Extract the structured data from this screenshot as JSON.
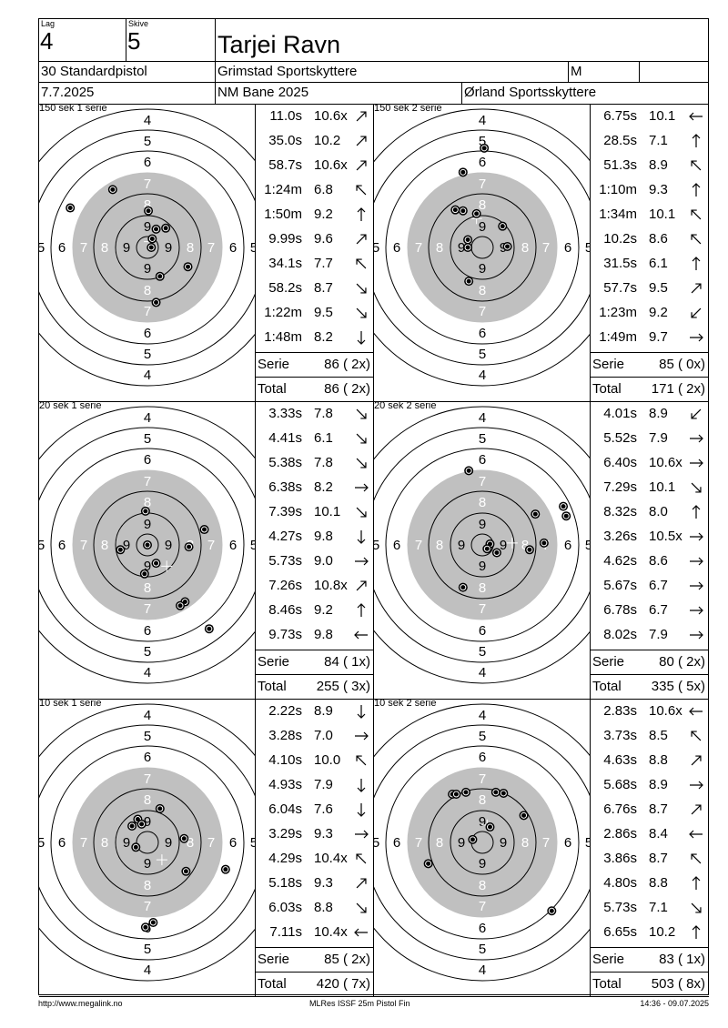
{
  "header": {
    "lag_label": "Lag",
    "lag_value": "4",
    "skive_label": "Skive",
    "skive_value": "5",
    "shooter_name": "Tarjei Ravn",
    "class": "30 Standardpistol",
    "club": "Grimstad Sportskyttere",
    "gender": "M",
    "date": "7.7.2025",
    "event": "NM Bane 2025",
    "organizer": "Ørland Sportsskyttere"
  },
  "target_labels": {
    "ring4": "4",
    "ring5": "5",
    "ring6": "6",
    "ring7": "7",
    "ring8": "8",
    "ring9": "9"
  },
  "summary_labels": {
    "serie": "Serie",
    "total": "Total"
  },
  "series": [
    {
      "title": "150 sek 1 serie",
      "shots": [
        {
          "time": "11.0s",
          "score": "10.6x",
          "dir": "up-right"
        },
        {
          "time": "35.0s",
          "score": "10.2",
          "dir": "up-right"
        },
        {
          "time": "58.7s",
          "score": "10.6x",
          "dir": "up-right"
        },
        {
          "time": "1:24m",
          "score": "6.8",
          "dir": "up-left"
        },
        {
          "time": "1:50m",
          "score": "9.2",
          "dir": "up"
        },
        {
          "time": "9.99s",
          "score": "9.6",
          "dir": "up-right"
        },
        {
          "time": "34.1s",
          "score": "7.7",
          "dir": "up-left"
        },
        {
          "time": "58.2s",
          "score": "8.7",
          "dir": "down-right"
        },
        {
          "time": "1:22m",
          "score": "9.5",
          "dir": "down-right"
        },
        {
          "time": "1:48m",
          "score": "8.2",
          "dir": "down"
        }
      ],
      "serie_value": "86 ( 2x)",
      "total_value": "86 ( 2x)",
      "hits": [
        [
          -0.8,
          0.41
        ],
        [
          -0.36,
          0.6
        ],
        [
          0.01,
          0.38
        ],
        [
          0.09,
          0.19
        ],
        [
          0.19,
          0.2
        ],
        [
          0.05,
          0.09
        ],
        [
          0.04,
          0.0
        ],
        [
          0.42,
          -0.2
        ],
        [
          0.13,
          -0.3
        ],
        [
          0.09,
          -0.57
        ]
      ],
      "center_mark": [
        0.02,
        0.06
      ]
    },
    {
      "title": "150 sek 2 serie",
      "shots": [
        {
          "time": "6.75s",
          "score": "10.1",
          "dir": "left"
        },
        {
          "time": "28.5s",
          "score": "7.1",
          "dir": "up"
        },
        {
          "time": "51.3s",
          "score": "8.9",
          "dir": "up-left"
        },
        {
          "time": "1:10m",
          "score": "9.3",
          "dir": "up"
        },
        {
          "time": "1:34m",
          "score": "10.1",
          "dir": "up-left"
        },
        {
          "time": "10.2s",
          "score": "8.6",
          "dir": "up-left"
        },
        {
          "time": "31.5s",
          "score": "6.1",
          "dir": "up"
        },
        {
          "time": "57.7s",
          "score": "9.5",
          "dir": "up-right"
        },
        {
          "time": "1:23m",
          "score": "9.2",
          "dir": "down-left"
        },
        {
          "time": "1:49m",
          "score": "9.7",
          "dir": "right"
        }
      ],
      "serie_value": "85 ( 0x)",
      "total_value": "171 ( 2x)",
      "hits": [
        [
          0.02,
          1.03
        ],
        [
          -0.2,
          0.78
        ],
        [
          -0.28,
          0.39
        ],
        [
          -0.2,
          0.38
        ],
        [
          -0.06,
          0.35
        ],
        [
          0.21,
          0.22
        ],
        [
          -0.15,
          0.08
        ],
        [
          -0.15,
          0.0
        ],
        [
          0.26,
          0.01
        ],
        [
          -0.14,
          -0.35
        ]
      ],
      "center_mark": [
        -0.06,
        0.3
      ]
    },
    {
      "title": "20 sek 1 serie",
      "shots": [
        {
          "time": "3.33s",
          "score": "7.8",
          "dir": "down-right"
        },
        {
          "time": "4.41s",
          "score": "6.1",
          "dir": "down-right"
        },
        {
          "time": "5.38s",
          "score": "7.8",
          "dir": "down-right"
        },
        {
          "time": "6.38s",
          "score": "8.2",
          "dir": "right"
        },
        {
          "time": "7.39s",
          "score": "10.1",
          "dir": "down-right"
        },
        {
          "time": "4.27s",
          "score": "9.8",
          "dir": "down"
        },
        {
          "time": "5.73s",
          "score": "9.0",
          "dir": "right"
        },
        {
          "time": "7.26s",
          "score": "10.8x",
          "dir": "up-right"
        },
        {
          "time": "8.46s",
          "score": "9.2",
          "dir": "up"
        },
        {
          "time": "9.73s",
          "score": "9.8",
          "dir": "left"
        }
      ],
      "serie_value": "84 ( 1x)",
      "total_value": "255 ( 3x)",
      "hits": [
        [
          -0.02,
          0.35
        ],
        [
          0.59,
          0.16
        ],
        [
          0.43,
          -0.02
        ],
        [
          0.0,
          -0.0
        ],
        [
          -0.28,
          -0.05
        ],
        [
          0.09,
          -0.19
        ],
        [
          -0.03,
          -0.3
        ],
        [
          0.39,
          -0.59
        ],
        [
          0.34,
          -0.63
        ],
        [
          0.64,
          -0.87
        ]
      ],
      "center_mark": [
        0.2,
        -0.22
      ]
    },
    {
      "title": "20 sek 2 serie",
      "shots": [
        {
          "time": "4.01s",
          "score": "8.9",
          "dir": "down-left"
        },
        {
          "time": "5.52s",
          "score": "7.9",
          "dir": "right"
        },
        {
          "time": "6.40s",
          "score": "10.6x",
          "dir": "right"
        },
        {
          "time": "7.29s",
          "score": "10.1",
          "dir": "down-right"
        },
        {
          "time": "8.32s",
          "score": "8.0",
          "dir": "up"
        },
        {
          "time": "3.26s",
          "score": "10.5x",
          "dir": "right"
        },
        {
          "time": "4.62s",
          "score": "8.6",
          "dir": "right"
        },
        {
          "time": "5.67s",
          "score": "6.7",
          "dir": "right"
        },
        {
          "time": "6.78s",
          "score": "6.7",
          "dir": "right"
        },
        {
          "time": "8.02s",
          "score": "7.9",
          "dir": "right"
        }
      ],
      "serie_value": "80 ( 2x)",
      "total_value": "335 ( 5x)",
      "hits": [
        [
          -0.14,
          0.77
        ],
        [
          0.55,
          0.32
        ],
        [
          0.84,
          0.4
        ],
        [
          0.87,
          0.3
        ],
        [
          0.64,
          0.02
        ],
        [
          0.49,
          -0.05
        ],
        [
          0.08,
          0.01
        ],
        [
          0.05,
          -0.04
        ],
        [
          0.15,
          -0.08
        ],
        [
          -0.2,
          -0.44
        ]
      ],
      "center_mark": [
        0.31,
        0.02
      ]
    },
    {
      "title": "10 sek 1 serie",
      "shots": [
        {
          "time": "2.22s",
          "score": "8.9",
          "dir": "down"
        },
        {
          "time": "3.28s",
          "score": "7.0",
          "dir": "right"
        },
        {
          "time": "4.10s",
          "score": "10.0",
          "dir": "up-left"
        },
        {
          "time": "4.93s",
          "score": "7.9",
          "dir": "down"
        },
        {
          "time": "6.04s",
          "score": "7.6",
          "dir": "down"
        },
        {
          "time": "3.29s",
          "score": "9.3",
          "dir": "right"
        },
        {
          "time": "4.29s",
          "score": "10.4x",
          "dir": "up-left"
        },
        {
          "time": "5.18s",
          "score": "9.3",
          "dir": "up-right"
        },
        {
          "time": "6.03s",
          "score": "8.8",
          "dir": "down-right"
        },
        {
          "time": "7.11s",
          "score": "10.4x",
          "dir": "left"
        }
      ],
      "serie_value": "85 ( 2x)",
      "total_value": "420 ( 7x)",
      "hits": [
        [
          0.13,
          0.35
        ],
        [
          -0.1,
          0.24
        ],
        [
          -0.06,
          0.19
        ],
        [
          -0.16,
          0.17
        ],
        [
          0.38,
          0.04
        ],
        [
          -0.12,
          -0.05
        ],
        [
          0.4,
          -0.3
        ],
        [
          0.81,
          -0.28
        ],
        [
          0.06,
          -0.83
        ],
        [
          -0.02,
          -0.88
        ]
      ],
      "center_mark": [
        0.15,
        -0.18
      ]
    },
    {
      "title": "10 sek 2 serie",
      "shots": [
        {
          "time": "2.83s",
          "score": "10.6x",
          "dir": "left"
        },
        {
          "time": "3.73s",
          "score": "8.5",
          "dir": "up-left"
        },
        {
          "time": "4.63s",
          "score": "8.8",
          "dir": "up-right"
        },
        {
          "time": "5.68s",
          "score": "8.9",
          "dir": "right"
        },
        {
          "time": "6.76s",
          "score": "8.7",
          "dir": "up-right"
        },
        {
          "time": "2.86s",
          "score": "8.4",
          "dir": "left"
        },
        {
          "time": "3.86s",
          "score": "8.7",
          "dir": "up-left"
        },
        {
          "time": "4.80s",
          "score": "8.8",
          "dir": "up"
        },
        {
          "time": "5.73s",
          "score": "7.1",
          "dir": "down-right"
        },
        {
          "time": "6.65s",
          "score": "10.2",
          "dir": "up"
        }
      ],
      "serie_value": "83 ( 1x)",
      "total_value": "503 ( 8x)",
      "hits": [
        [
          -0.31,
          0.5
        ],
        [
          -0.27,
          0.5
        ],
        [
          -0.17,
          0.52
        ],
        [
          0.14,
          0.52
        ],
        [
          0.22,
          0.51
        ],
        [
          0.43,
          0.28
        ],
        [
          0.08,
          0.16
        ],
        [
          -0.1,
          0.03
        ],
        [
          -0.56,
          -0.22
        ],
        [
          0.72,
          -0.71
        ]
      ],
      "center_mark": [
        0.05,
        0.18
      ]
    }
  ],
  "footer": {
    "left": "http://www.megalink.no",
    "center": "MLRes ISSF 25m Pistol Fin",
    "right": "14:36 - 09.07.2025"
  },
  "colors": {
    "black_zone": "#c0c0c0",
    "ring_line": "#000000",
    "hit_fill": "#000000",
    "hit_ring": "#ffffff"
  }
}
